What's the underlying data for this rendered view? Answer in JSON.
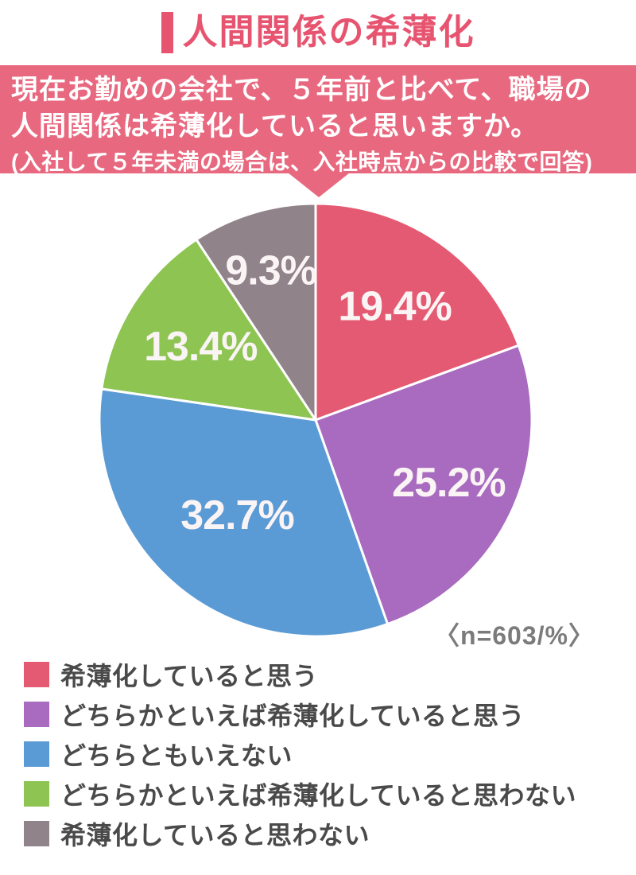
{
  "page": {
    "title": "人間関係の希薄化"
  },
  "question_banner": {
    "line1": "現在お勤めの会社で、５年前と比べて、職場の",
    "line2": "人間関係は希薄化していると思いますか。",
    "line3": "(入社して５年未満の場合は、入社時点からの比較で回答)"
  },
  "colors": {
    "title_accent": "#e75470",
    "banner_bg": "#e8697f",
    "slice_stroke": "#ffffff",
    "legend_text": "#4a4a4a",
    "note_text": "#7b7b7b"
  },
  "chart_data": {
    "type": "pie",
    "title": "人間関係の希薄化",
    "note": "〈n=603/%〉",
    "n": 603,
    "unit": "%",
    "start_angle_deg": 0,
    "direction": "clockwise",
    "slices": [
      {
        "label": "希薄化していると思う",
        "value": 19.4,
        "display": "19.4%",
        "color": "#e45a72"
      },
      {
        "label": "どちらかといえば希薄化していると思う",
        "value": 25.2,
        "display": "25.2%",
        "color": "#a86bbf"
      },
      {
        "label": "どちらともいえない",
        "value": 32.7,
        "display": "32.7%",
        "color": "#5b9bd5"
      },
      {
        "label": "どちらかといえば希薄化していると思わない",
        "value": 13.4,
        "display": "13.4%",
        "color": "#8dc452"
      },
      {
        "label": "希薄化していると思わない",
        "value": 9.3,
        "display": "9.3%",
        "color": "#90838a"
      }
    ]
  }
}
